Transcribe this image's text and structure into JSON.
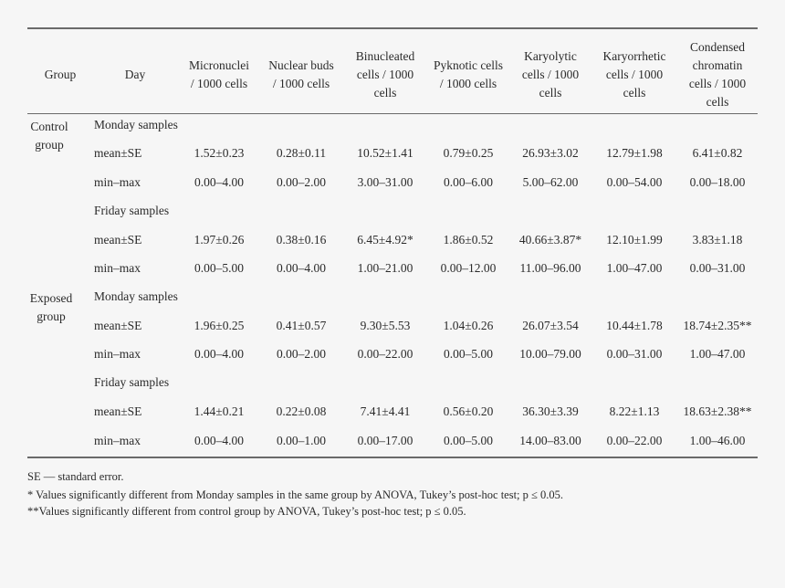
{
  "headers": {
    "group": "Group",
    "day": "Day",
    "micronuclei": [
      "Micronuclei",
      "/ 1000 cells"
    ],
    "nuclear_buds": [
      "Nuclear buds",
      "/ 1000 cells"
    ],
    "binucleated": [
      "Binucleated",
      "cells / 1000",
      "cells"
    ],
    "pyknotic": [
      "Pyknotic cells",
      "/ 1000 cells"
    ],
    "karyolytic": [
      "Karyolytic",
      "cells / 1000",
      "cells"
    ],
    "karyorrhetic": [
      "Karyorrhetic",
      "cells / 1000",
      "cells"
    ],
    "condensed": [
      "Condensed",
      "chromatin",
      "cells / 1000",
      "cells"
    ]
  },
  "groups": {
    "control": [
      "Control",
      "group"
    ],
    "exposed": [
      "Exposed",
      "group"
    ]
  },
  "rows": [
    {
      "day": "Monday samples",
      "values": []
    },
    {
      "day": "mean±SE",
      "values": [
        "1.52±0.23",
        "0.28±0.11",
        "10.52±1.41",
        "0.79±0.25",
        "26.93±3.02",
        "12.79±1.98",
        "6.41±0.82"
      ]
    },
    {
      "day": "min–max",
      "values": [
        "0.00–4.00",
        "0.00–2.00",
        "3.00–31.00",
        "0.00–6.00",
        "5.00–62.00",
        "0.00–54.00",
        "0.00–18.00"
      ]
    },
    {
      "day": "Friday samples",
      "values": []
    },
    {
      "day": "mean±SE",
      "values": [
        "1.97±0.26",
        "0.38±0.16",
        "6.45±4.92*",
        "1.86±0.52",
        "40.66±3.87*",
        "12.10±1.99",
        "3.83±1.18"
      ]
    },
    {
      "day": "min–max",
      "values": [
        "0.00–5.00",
        "0.00–4.00",
        "1.00–21.00",
        "0.00–12.00",
        "11.00–96.00",
        "1.00–47.00",
        "0.00–31.00"
      ]
    },
    {
      "day": "Monday samples",
      "values": []
    },
    {
      "day": "mean±SE",
      "values": [
        "1.96±0.25",
        "0.41±0.57",
        "9.30±5.53",
        "1.04±0.26",
        "26.07±3.54",
        "10.44±1.78",
        "18.74±2.35**"
      ]
    },
    {
      "day": "min–max",
      "values": [
        "0.00–4.00",
        "0.00–2.00",
        "0.00–22.00",
        "0.00–5.00",
        "10.00–79.00",
        "0.00–31.00",
        "1.00–47.00"
      ]
    },
    {
      "day": "Friday samples",
      "values": []
    },
    {
      "day": "mean±SE",
      "values": [
        "1.44±0.21",
        "0.22±0.08",
        "7.41±4.41",
        "0.56±0.20",
        "36.30±3.39",
        "8.22±1.13",
        "18.63±2.38**"
      ]
    },
    {
      "day": "min–max",
      "values": [
        "0.00–4.00",
        "0.00–1.00",
        "0.00–17.00",
        "0.00–5.00",
        "14.00–83.00",
        "0.00–22.00",
        "1.00–46.00"
      ]
    }
  ],
  "footnotes": [
    "SE — standard error.",
    "* Values significantly different from Monday samples in the same group by ANOVA, Tukey’s post-hoc test; p ≤ 0.05.",
    "**Values significantly different from control group by ANOVA, Tukey’s post-hoc test; p ≤ 0.05."
  ]
}
